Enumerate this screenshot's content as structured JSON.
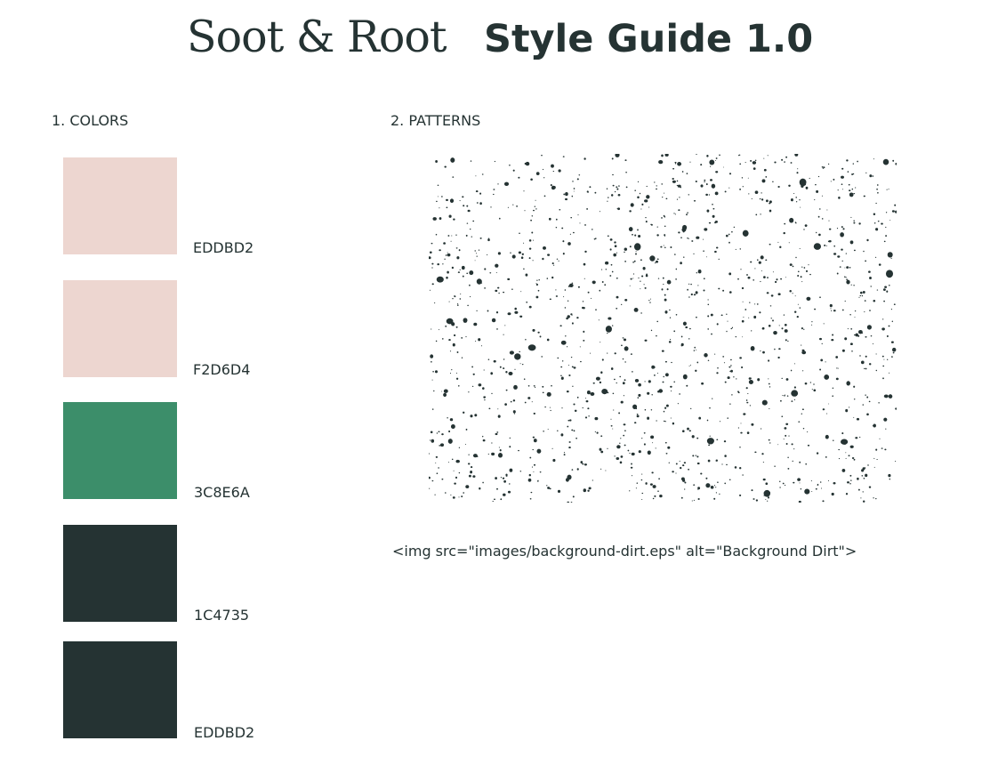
{
  "header": {
    "brand": "Soot & Root",
    "title": "Style Guide 1.0"
  },
  "colors_section": {
    "heading": "1. COLORS",
    "swatches": [
      {
        "code": "EDDBD2",
        "color": "#EDD6D0"
      },
      {
        "code": "F2D6D4",
        "color": "#EDD6D0"
      },
      {
        "code": "3C8E6A",
        "color": "#3C8E6A"
      },
      {
        "code": "1C4735",
        "color": "#253333"
      },
      {
        "code": "EDDBD2",
        "color": "#253333"
      }
    ]
  },
  "patterns_section": {
    "heading": "2. PATTERNS",
    "pattern_color": "#253333",
    "caption": "<img src=\"images/background-dirt.eps\" alt=\"Background Dirt\">"
  }
}
